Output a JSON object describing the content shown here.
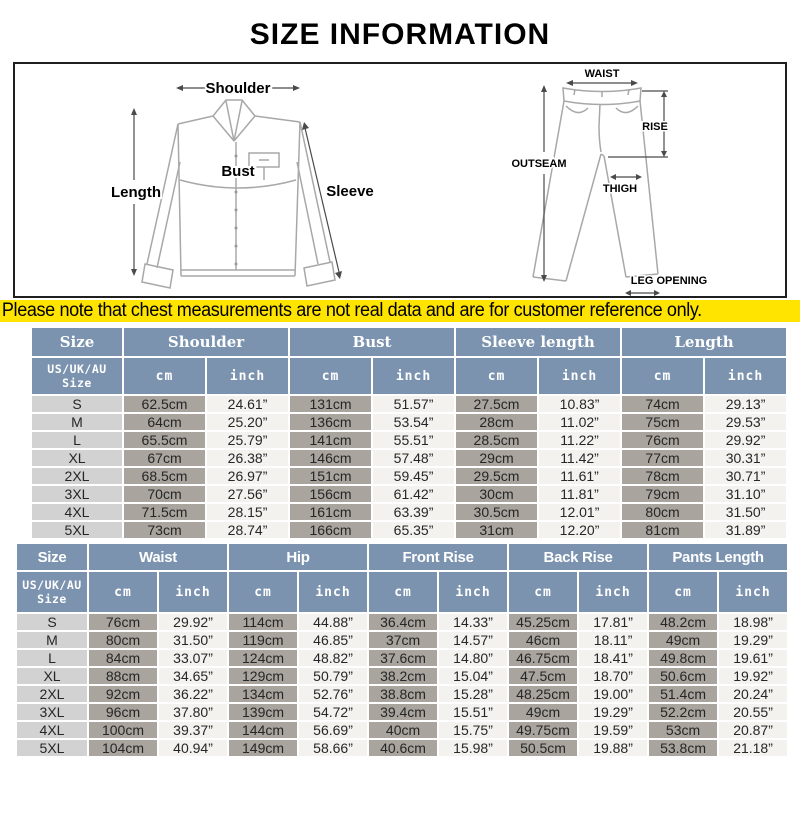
{
  "title": "SIZE INFORMATION",
  "note": "Please note that chest measurements are not real data and are for customer reference only.",
  "colors": {
    "header_bg": "#7b93af",
    "header_text": "#ffffff",
    "size_col_bg": "#d2d2d2",
    "cm_col_bg": "#a9a49e",
    "inch_col_bg": "#f3f2ef",
    "note_highlight": "#ffe400",
    "sketch_line": "#a8a8a8"
  },
  "diagrams": {
    "shirt": {
      "labels": {
        "shoulder": "Shoulder",
        "length": "Length",
        "bust": "Bust",
        "sleeve": "Sleeve"
      }
    },
    "pants": {
      "labels": {
        "waist": "WAIST",
        "rise": "RISE",
        "outseam": "OUTSEAM",
        "thigh": "THIGH",
        "leg_opening": "LEG OPENING"
      }
    }
  },
  "tables": [
    {
      "id": "tops",
      "size_header": "Size",
      "size_subheader": "US/UK/AU\nSize",
      "unit_labels": [
        "cm",
        "inch"
      ],
      "groups": [
        "Shoulder",
        "Bust",
        "Sleeve length",
        "Length"
      ],
      "rows": [
        {
          "size": "S",
          "values": [
            "62.5cm",
            "24.61”",
            "131cm",
            "51.57”",
            "27.5cm",
            "10.83”",
            "74cm",
            "29.13”"
          ]
        },
        {
          "size": "M",
          "values": [
            "64cm",
            "25.20”",
            "136cm",
            "53.54”",
            "28cm",
            "11.02”",
            "75cm",
            "29.53”"
          ]
        },
        {
          "size": "L",
          "values": [
            "65.5cm",
            "25.79”",
            "141cm",
            "55.51”",
            "28.5cm",
            "11.22”",
            "76cm",
            "29.92”"
          ]
        },
        {
          "size": "XL",
          "values": [
            "67cm",
            "26.38”",
            "146cm",
            "57.48”",
            "29cm",
            "11.42”",
            "77cm",
            "30.31”"
          ]
        },
        {
          "size": "2XL",
          "values": [
            "68.5cm",
            "26.97”",
            "151cm",
            "59.45”",
            "29.5cm",
            "11.61”",
            "78cm",
            "30.71”"
          ]
        },
        {
          "size": "3XL",
          "values": [
            "70cm",
            "27.56”",
            "156cm",
            "61.42”",
            "30cm",
            "11.81”",
            "79cm",
            "31.10”"
          ]
        },
        {
          "size": "4XL",
          "values": [
            "71.5cm",
            "28.15”",
            "161cm",
            "63.39”",
            "30.5cm",
            "12.01”",
            "80cm",
            "31.50”"
          ]
        },
        {
          "size": "5XL",
          "values": [
            "73cm",
            "28.74”",
            "166cm",
            "65.35”",
            "31cm",
            "12.20”",
            "81cm",
            "31.89”"
          ]
        }
      ]
    },
    {
      "id": "pants",
      "size_header": "Size",
      "size_subheader": "US/UK/AU\nSize",
      "unit_labels": [
        "cm",
        "inch"
      ],
      "groups": [
        "Waist",
        "Hip",
        "Front Rise",
        "Back Rise",
        "Pants Length"
      ],
      "rows": [
        {
          "size": "S",
          "values": [
            "76cm",
            "29.92”",
            "114cm",
            "44.88”",
            "36.4cm",
            "14.33”",
            "45.25cm",
            "17.81”",
            "48.2cm",
            "18.98”"
          ]
        },
        {
          "size": "M",
          "values": [
            "80cm",
            "31.50”",
            "119cm",
            "46.85”",
            "37cm",
            "14.57”",
            "46cm",
            "18.11”",
            "49cm",
            "19.29”"
          ]
        },
        {
          "size": "L",
          "values": [
            "84cm",
            "33.07”",
            "124cm",
            "48.82”",
            "37.6cm",
            "14.80”",
            "46.75cm",
            "18.41”",
            "49.8cm",
            "19.61”"
          ]
        },
        {
          "size": "XL",
          "values": [
            "88cm",
            "34.65”",
            "129cm",
            "50.79”",
            "38.2cm",
            "15.04”",
            "47.5cm",
            "18.70”",
            "50.6cm",
            "19.92”"
          ]
        },
        {
          "size": "2XL",
          "values": [
            "92cm",
            "36.22”",
            "134cm",
            "52.76”",
            "38.8cm",
            "15.28”",
            "48.25cm",
            "19.00”",
            "51.4cm",
            "20.24”"
          ]
        },
        {
          "size": "3XL",
          "values": [
            "96cm",
            "37.80”",
            "139cm",
            "54.72”",
            "39.4cm",
            "15.51”",
            "49cm",
            "19.29”",
            "52.2cm",
            "20.55”"
          ]
        },
        {
          "size": "4XL",
          "values": [
            "100cm",
            "39.37”",
            "144cm",
            "56.69”",
            "40cm",
            "15.75”",
            "49.75cm",
            "19.59”",
            "53cm",
            "20.87”"
          ]
        },
        {
          "size": "5XL",
          "values": [
            "104cm",
            "40.94”",
            "149cm",
            "58.66”",
            "40.6cm",
            "15.98”",
            "50.5cm",
            "19.88”",
            "53.8cm",
            "21.18”"
          ]
        }
      ]
    }
  ]
}
